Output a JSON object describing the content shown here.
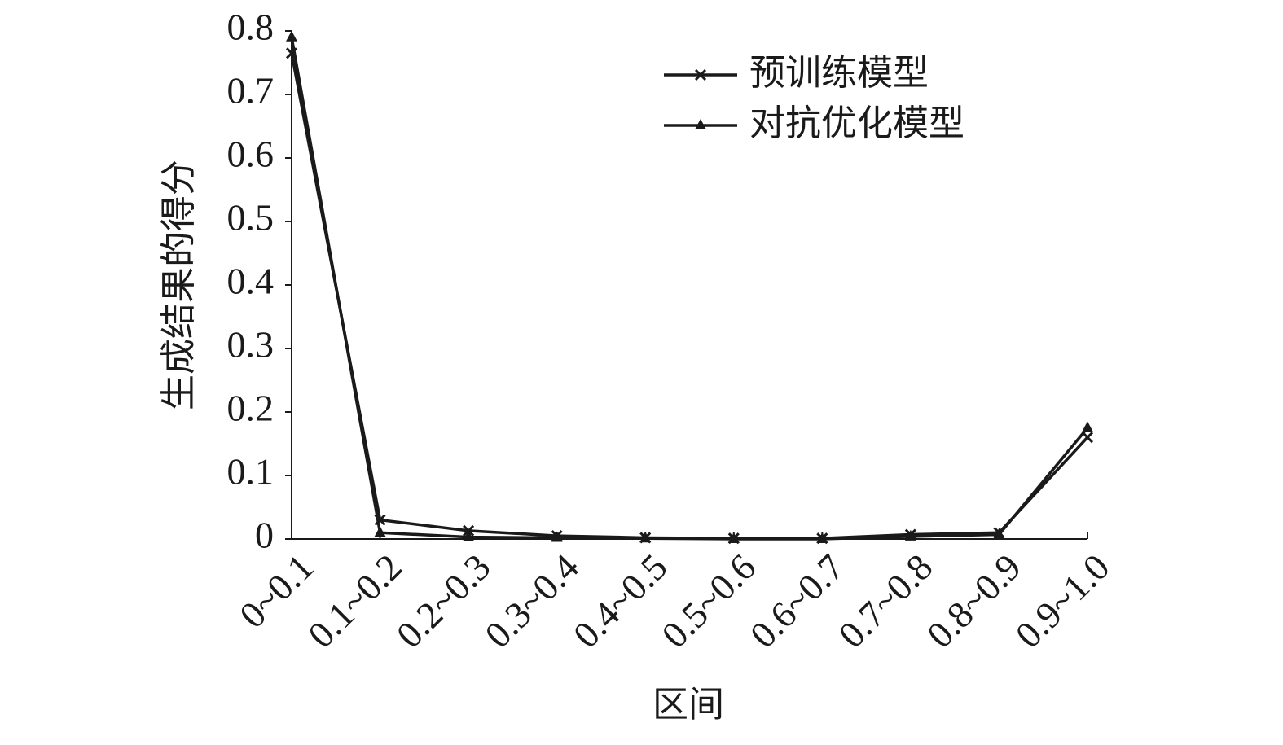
{
  "chart_data": {
    "type": "line",
    "x_label": "区间",
    "y_label": "生成结果的得分",
    "categories": [
      "0~0.1",
      "0.1~0.2",
      "0.2~0.3",
      "0.3~0.4",
      "0.4~0.5",
      "0.5~0.6",
      "0.6~0.7",
      "0.7~0.8",
      "0.8~0.9",
      "0.9~1.0"
    ],
    "series": [
      {
        "name": "预训练模型",
        "color": "#1a1a1a",
        "marker": "x",
        "values": [
          0.765,
          0.03,
          0.013,
          0.005,
          0.002,
          0.001,
          0.001,
          0.007,
          0.01,
          0.16
        ]
      },
      {
        "name": "对抗优化模型",
        "color": "#1a1a1a",
        "marker": "triangle",
        "values": [
          0.79,
          0.01,
          0.003,
          0.002,
          0.001,
          0.0,
          0.0,
          0.004,
          0.007,
          0.175
        ]
      }
    ],
    "ylim": [
      0,
      0.8
    ],
    "yticks": [
      0,
      0.1,
      0.2,
      0.3,
      0.4,
      0.5,
      0.6,
      0.7,
      0.8
    ],
    "grid": false,
    "legend": "upper right"
  }
}
